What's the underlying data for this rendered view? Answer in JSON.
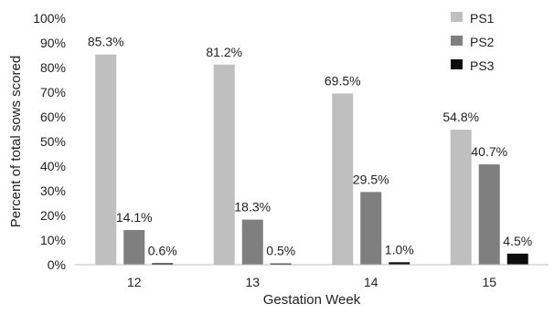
{
  "chart_data": {
    "type": "bar",
    "xlabel": "Gestation Week",
    "ylabel": "Percent of total sows scored",
    "ylim": [
      0,
      100
    ],
    "y_ticks": [
      "0%",
      "10%",
      "20%",
      "30%",
      "40%",
      "50%",
      "60%",
      "70%",
      "80%",
      "90%",
      "100%"
    ],
    "categories": [
      "12",
      "13",
      "14",
      "15"
    ],
    "grid": false,
    "legend_position": "top-right",
    "series": [
      {
        "name": "PS1",
        "color": "#bfbfbf",
        "values": [
          85.3,
          81.2,
          69.5,
          54.8
        ],
        "labels": [
          "85.3%",
          "81.2%",
          "69.5%",
          "54.8%"
        ]
      },
      {
        "name": "PS2",
        "color": "#7f7f7f",
        "values": [
          14.1,
          18.3,
          29.5,
          40.7
        ],
        "labels": [
          "14.1%",
          "18.3%",
          "29.5%",
          "40.7%"
        ]
      },
      {
        "name": "PS3",
        "color": "#0d0d0d",
        "values": [
          0.6,
          0.5,
          1.0,
          4.5
        ],
        "labels": [
          "0.6%",
          "0.5%",
          "1.0%",
          "4.5%"
        ]
      }
    ]
  }
}
